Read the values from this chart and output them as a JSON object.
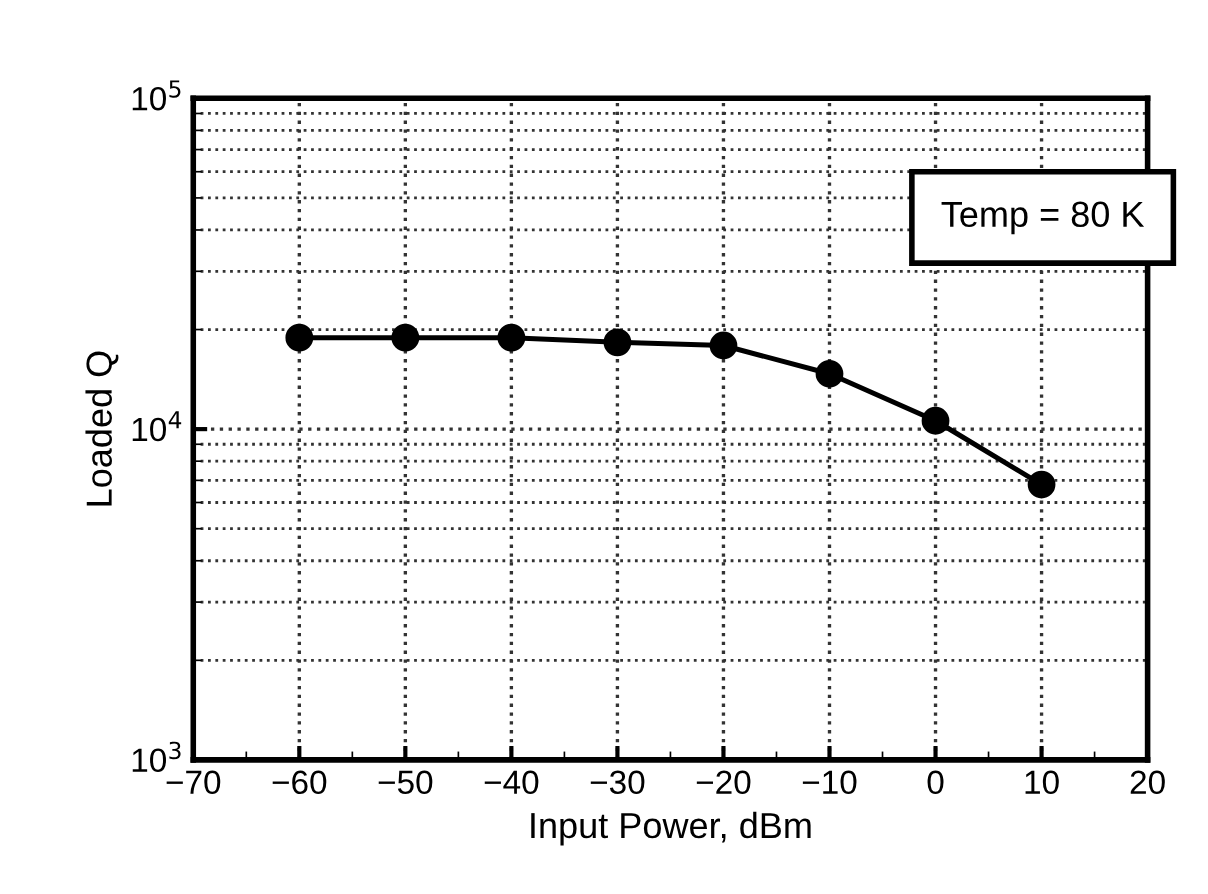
{
  "chart_data": {
    "type": "line",
    "xlabel": "Input Power, dBm",
    "ylabel": "Loaded Q",
    "annotations": [
      "Temp = 80 K"
    ],
    "x": [
      -60,
      -50,
      -40,
      -30,
      -20,
      -10,
      0,
      10
    ],
    "series": [
      {
        "color": "#000000",
        "values": [
          18900,
          18900,
          18900,
          18300,
          17900,
          14700,
          10600,
          6800
        ]
      }
    ],
    "log": "y",
    "xlim": [
      -70,
      20
    ],
    "ylim": [
      1000,
      100000
    ],
    "xticks": [
      {
        "value": -70,
        "label": "−70"
      },
      {
        "value": -60,
        "label": "−60"
      },
      {
        "value": -50,
        "label": "−50"
      },
      {
        "value": -40,
        "label": "−40"
      },
      {
        "value": -30,
        "label": "−30"
      },
      {
        "value": -20,
        "label": "−20"
      },
      {
        "value": -10,
        "label": "−10"
      },
      0,
      10,
      20
    ],
    "yticks": [
      {
        "value": 1000,
        "label": "10$^{3}$"
      },
      {
        "value": 10000,
        "label": "10$^{4}$"
      },
      {
        "value": 100000,
        "label": "10$^{5}$"
      }
    ],
    "grid": true,
    "marker": "circle",
    "line_style": "solid",
    "legend": false
  }
}
